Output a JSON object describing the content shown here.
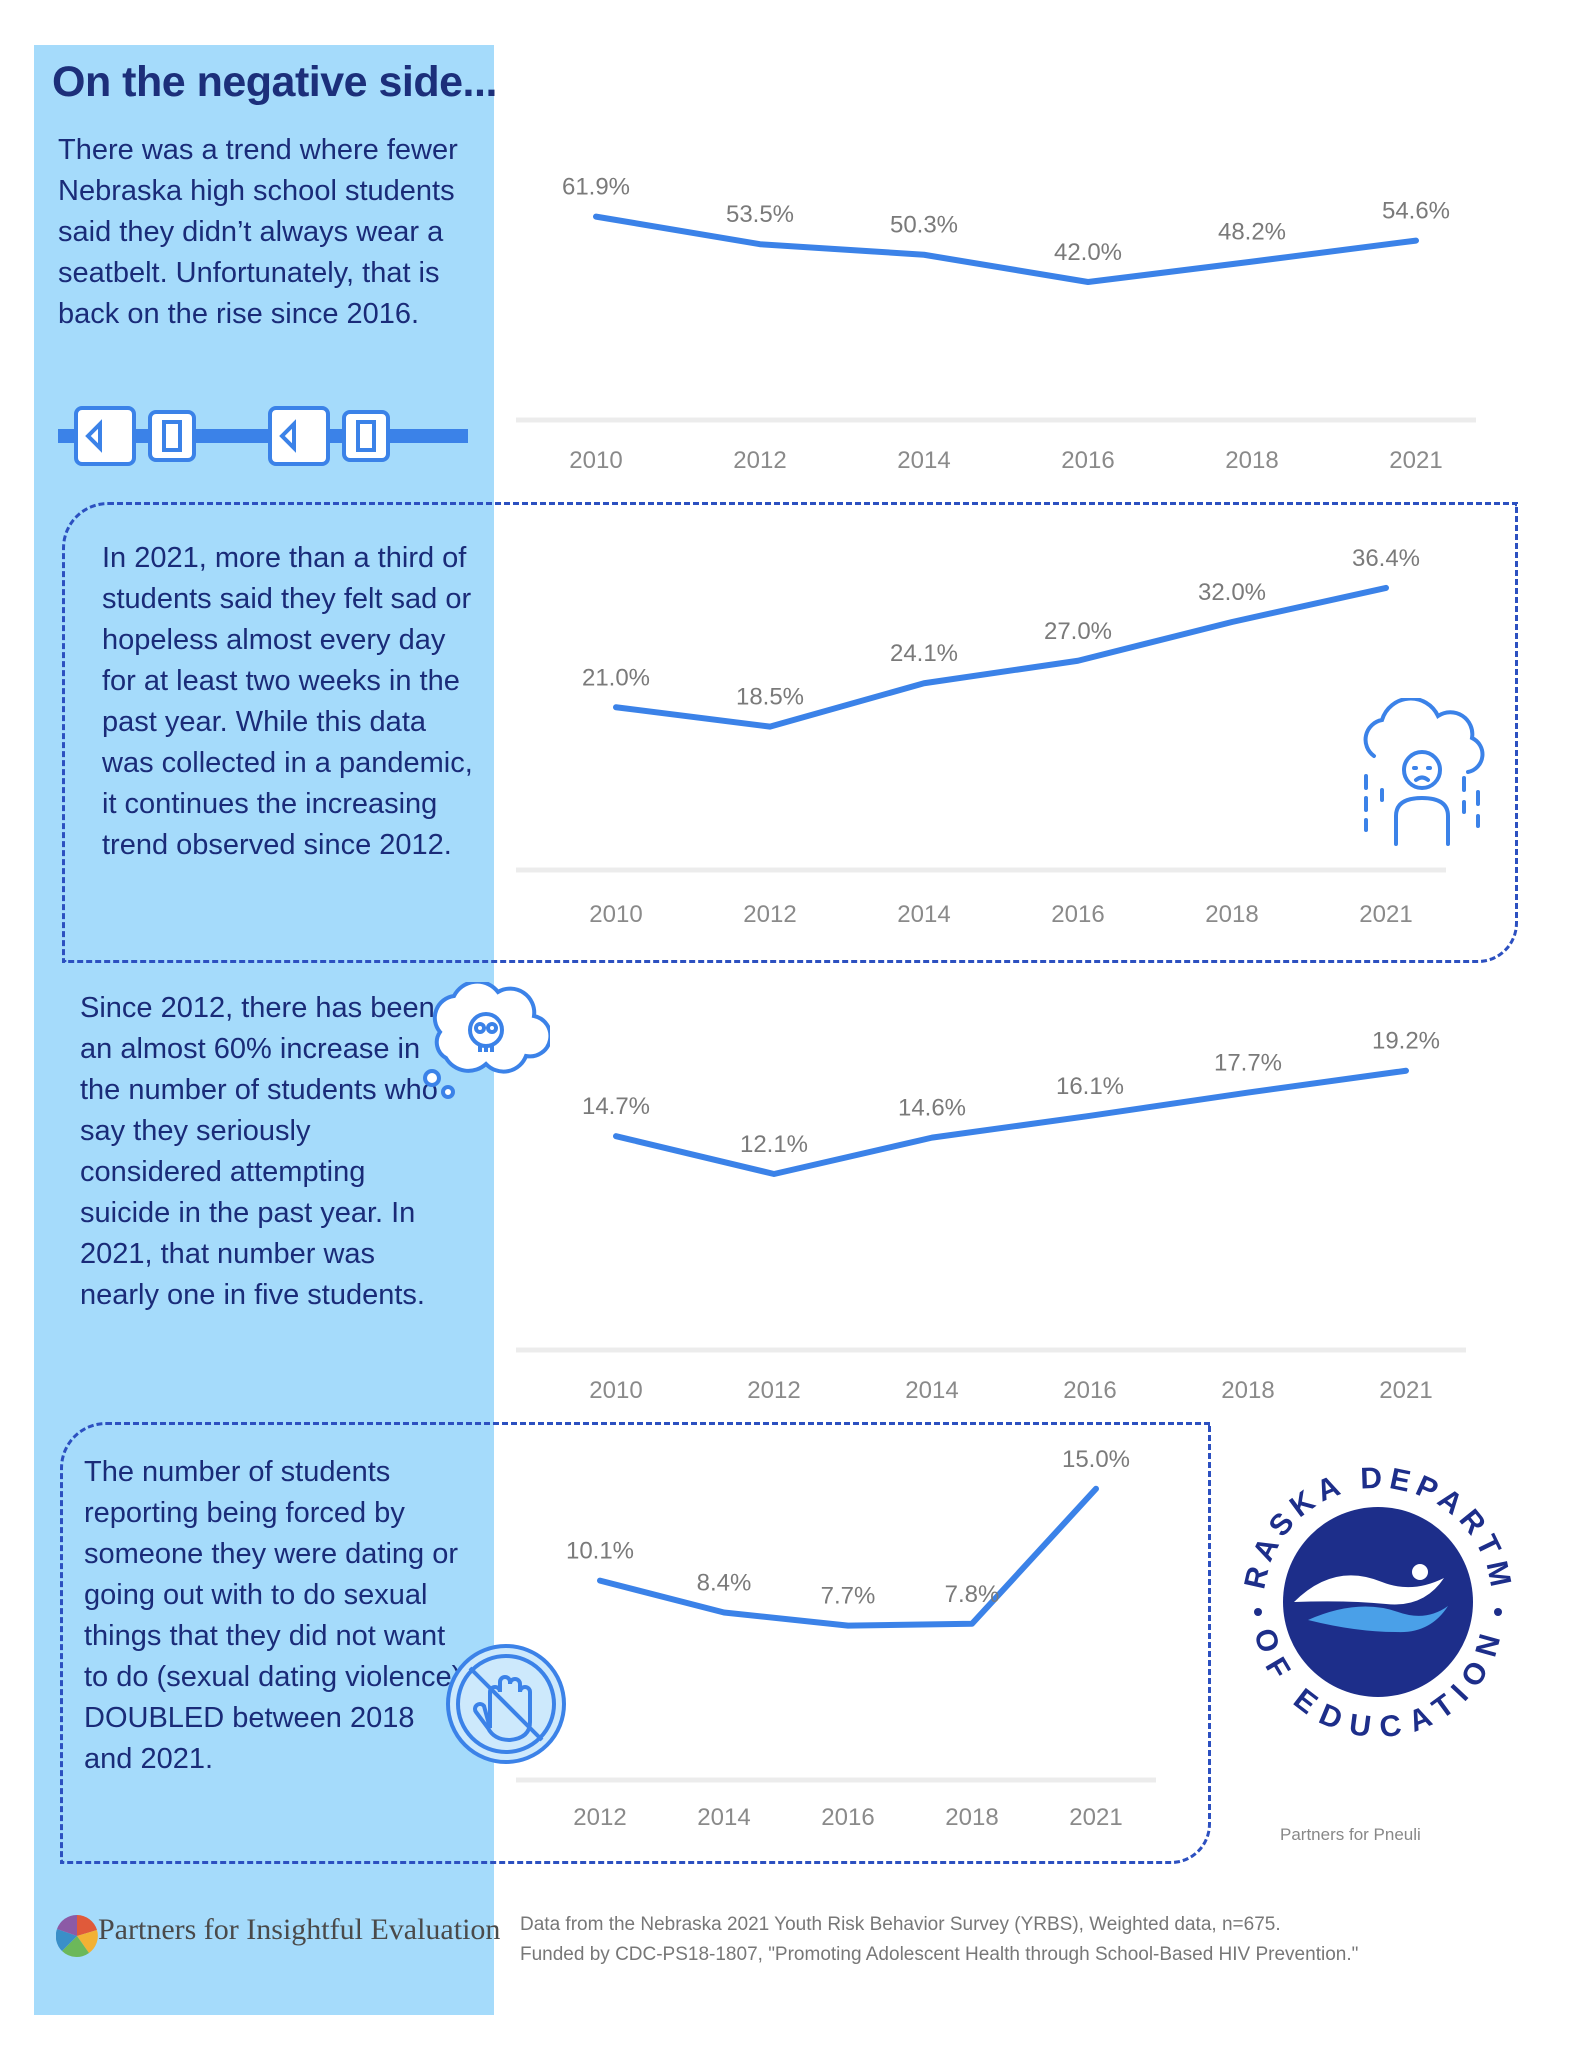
{
  "heading": "On the negative side...",
  "paragraphs": {
    "seatbelt": "There was a trend where fewer Nebraska high school students said they didn’t always wear a seatbelt. Unfortunately, that is back on the rise since 2016.",
    "sad": "In 2021, more than a third of students said they felt sad or hopeless almost every day for at least two weeks in the past year. While this data was collected in a pandemic, it continues the increasing trend observed since 2012.",
    "suicide": "Since 2012, there has been an almost 60% increase in the number of students who say they seriously considered attempting suicide in the past year. In 2021, that number was nearly one in five students.",
    "dating": "The number of students reporting being forced by someone they were dating or going out with to do sexual things that they did not want to do (sexual dating violence) DOUBLED between 2018 and 2021."
  },
  "logos": {
    "partners": "Partners for Insightful Evaluation",
    "nde_top": "NEBRASKA DEPARTMENT",
    "nde_bottom": "OF EDUCATION"
  },
  "credit": "Partners for Pneuli",
  "footer": {
    "line1": "Data from the Nebraska 2021 Youth Risk Behavior Survey (YRBS), Weighted data, n=675.",
    "line2": "Funded by CDC-PS18-1807, \"Promoting Adolescent Health through School-Based HIV Prevention.\""
  },
  "colors": {
    "panel": "#a5dbfb",
    "line": "#3b82e8",
    "text": "#1a2b78",
    "accent": "#2c50c0"
  },
  "icons": [
    "seatbelt-icon",
    "sad-rain-cloud-icon",
    "skull-thought-icon",
    "stop-hand-icon",
    "nde-logo"
  ],
  "chart_data": [
    {
      "type": "line",
      "name": "seatbelt",
      "categories": [
        "2010",
        "2012",
        "2014",
        "2016",
        "2018",
        "2021"
      ],
      "values": [
        61.9,
        53.5,
        50.3,
        42.0,
        48.2,
        54.6
      ],
      "labels": [
        "61.9%",
        "53.5%",
        "50.3%",
        "42.0%",
        "48.2%",
        "54.6%"
      ],
      "ylim": [
        0,
        70
      ]
    },
    {
      "type": "line",
      "name": "sad",
      "categories": [
        "2010",
        "2012",
        "2014",
        "2016",
        "2018",
        "2021"
      ],
      "values": [
        21.0,
        18.5,
        24.1,
        27.0,
        32.0,
        36.4
      ],
      "labels": [
        "21.0%",
        "18.5%",
        "24.1%",
        "27.0%",
        "32.0%",
        "36.4%"
      ],
      "ylim": [
        0,
        40
      ]
    },
    {
      "type": "line",
      "name": "suicide",
      "categories": [
        "2010",
        "2012",
        "2014",
        "2016",
        "2018",
        "2021"
      ],
      "values": [
        14.7,
        12.1,
        14.6,
        16.1,
        17.7,
        19.2
      ],
      "labels": [
        "14.7%",
        "12.1%",
        "14.6%",
        "16.1%",
        "17.7%",
        "19.2%"
      ],
      "ylim": [
        0,
        22
      ]
    },
    {
      "type": "line",
      "name": "dating",
      "categories": [
        "2012",
        "2014",
        "2016",
        "2018",
        "2021"
      ],
      "values": [
        10.1,
        8.4,
        7.7,
        7.8,
        15.0
      ],
      "labels": [
        "10.1%",
        "8.4%",
        "7.7%",
        "7.8%",
        "15.0%"
      ],
      "ylim": [
        0,
        16
      ]
    }
  ]
}
